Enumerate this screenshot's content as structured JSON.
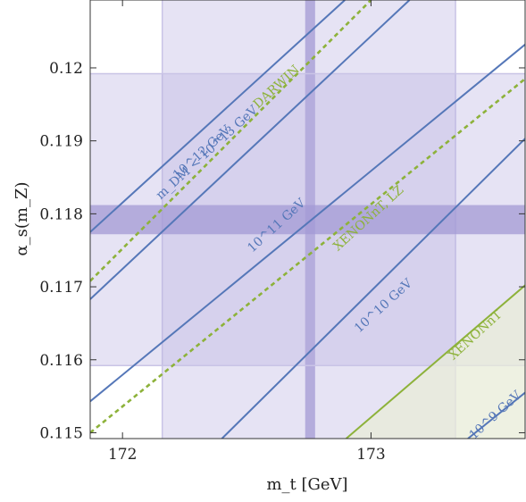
{
  "chart_data": {
    "type": "line",
    "title": "",
    "xlabel": "m_t [GeV]",
    "ylabel": "α_s(m_Z)",
    "xlim": [
      171.87,
      173.62
    ],
    "ylim": [
      0.11492,
      0.12093
    ],
    "x_ticks": [
      172,
      173
    ],
    "x_tick_labels": [
      "172",
      "173"
    ],
    "y_ticks": [
      0.115,
      0.116,
      0.117,
      0.118,
      0.119,
      0.12
    ],
    "y_tick_labels": [
      "0.115",
      "0.116",
      "0.117",
      "0.118",
      "0.119",
      "0.12"
    ],
    "bands": [
      {
        "axis": "x",
        "range": [
          172.16,
          173.34
        ],
        "color": "#b6b0e0",
        "opacity": 0.35
      },
      {
        "axis": "x",
        "range": [
          172.735,
          172.775
        ],
        "color": "#a39ad4",
        "opacity": 0.75
      },
      {
        "axis": "y",
        "range": [
          0.11592,
          0.11992
        ],
        "color": "#b6b0e0",
        "opacity": 0.35
      },
      {
        "axis": "y",
        "range": [
          0.11772,
          0.11812
        ],
        "color": "#a39ad4",
        "opacity": 0.75
      }
    ],
    "region": {
      "name": "XENONnT",
      "color": "#e8ecd8",
      "line_color": "#8db23a",
      "points": [
        [
          172.9,
          0.11492
        ],
        [
          173.62,
          0.11702
        ],
        [
          173.62,
          0.11492
        ]
      ]
    },
    "series": [
      {
        "name": "m_DM < 10^13 GeV",
        "style": "solid",
        "color": "#5577b8",
        "x": [
          171.87,
          172.895
        ],
        "y": [
          0.11775,
          0.12093
        ]
      },
      {
        "name": "10^12 GeV",
        "style": "solid",
        "color": "#5577b8",
        "x": [
          171.87,
          173.155
        ],
        "y": [
          0.11683,
          0.12093
        ]
      },
      {
        "name": "10^11 GeV",
        "style": "solid",
        "color": "#5577b8",
        "x": [
          171.87,
          173.62
        ],
        "y": [
          0.11543,
          0.12032
        ]
      },
      {
        "name": "10^10 GeV",
        "style": "solid",
        "color": "#5577b8",
        "x": [
          172.4,
          173.62
        ],
        "y": [
          0.11492,
          0.11903
        ]
      },
      {
        "name": "10^9 GeV",
        "style": "solid",
        "color": "#5577b8",
        "x": [
          173.39,
          173.62
        ],
        "y": [
          0.11492,
          0.11555
        ]
      },
      {
        "name": "DARWIN",
        "style": "dashed",
        "color": "#8db23a",
        "x": [
          171.87,
          173.0
        ],
        "y": [
          0.11708,
          0.12093
        ]
      },
      {
        "name": "XENONnT, LZ",
        "style": "dashed",
        "color": "#8db23a",
        "x": [
          171.87,
          173.62
        ],
        "y": [
          0.115,
          0.11985
        ]
      }
    ],
    "annotations": [
      {
        "text": "m_DM < 10^13 GeV",
        "x": 172.35,
        "y": 0.1188,
        "color": "#5577b8"
      },
      {
        "text": "10^12 GeV",
        "x": 172.33,
        "y": 0.1188,
        "color": "#5577b8"
      },
      {
        "text": "DARWIN",
        "x": 172.63,
        "y": 0.1197,
        "color": "#8db23a"
      },
      {
        "text": "10^11 GeV",
        "x": 172.63,
        "y": 0.1178,
        "color": "#5577b8"
      },
      {
        "text": "XENONnT, LZ",
        "x": 173.0,
        "y": 0.1179,
        "color": "#8db23a"
      },
      {
        "text": "10^10 GeV",
        "x": 173.06,
        "y": 0.1167,
        "color": "#5577b8"
      },
      {
        "text": "XENONnT",
        "x": 173.43,
        "y": 0.1163,
        "color": "#8db23a"
      },
      {
        "text": "10^9 GeV",
        "x": 173.51,
        "y": 0.1152,
        "color": "#5577b8"
      }
    ],
    "grid": false,
    "legend": "none"
  }
}
